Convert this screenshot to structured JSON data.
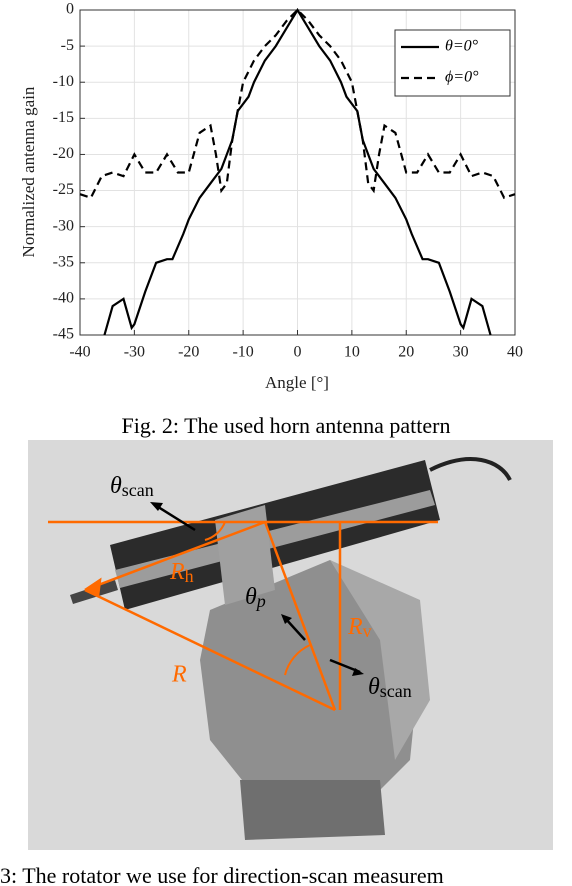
{
  "chart_data": {
    "type": "line",
    "xlabel": "Angle [°]",
    "ylabel": "Normalized antenna gain",
    "xlim": [
      -40,
      40
    ],
    "xticks": [
      -40,
      -30,
      -20,
      -10,
      0,
      10,
      20,
      30,
      40
    ],
    "ylim": [
      -45,
      0
    ],
    "yticks": [
      -45,
      -40,
      -35,
      -30,
      -25,
      -20,
      -15,
      -10,
      -5,
      0
    ],
    "grid": true,
    "legend": "upper right",
    "series": [
      {
        "name": "θ=0°",
        "color": "#000000",
        "line_style": "solid",
        "x": [
          -35.5,
          -34,
          -32,
          -30.5,
          -30,
          -28,
          -26,
          -24,
          -23,
          -21,
          -20,
          -18,
          -16,
          -14,
          -12,
          -11,
          -9,
          -8,
          -6,
          -4,
          -2,
          0,
          2,
          4,
          6,
          8,
          9,
          11,
          12,
          14,
          16,
          18,
          20,
          21,
          23,
          24,
          26,
          28,
          30,
          30.5,
          32,
          34,
          35.5
        ],
        "values": [
          -45,
          -41,
          -40,
          -44,
          -43.5,
          -39,
          -35,
          -34.5,
          -34.5,
          -31,
          -29,
          -26,
          -24,
          -22,
          -18,
          -14,
          -12,
          -10,
          -7,
          -5,
          -2.5,
          0,
          -2.5,
          -5,
          -7,
          -10,
          -12,
          -14,
          -18,
          -22,
          -24,
          -26,
          -29,
          -31,
          -34.5,
          -34.5,
          -35,
          -39,
          -43.5,
          -44,
          -40,
          -41,
          -45
        ]
      },
      {
        "name": "ϕ=0°",
        "color": "#000000",
        "line_style": "dashed",
        "x": [
          -40,
          -38,
          -36,
          -34,
          -32,
          -30,
          -28,
          -26,
          -24,
          -22,
          -20,
          -18,
          -16,
          -15,
          -14,
          -13,
          -12,
          -11,
          -10,
          -8,
          -6,
          -4,
          -2,
          0,
          2,
          4,
          6,
          8,
          10,
          11,
          12,
          13,
          14,
          15,
          16,
          18,
          20,
          22,
          24,
          26,
          28,
          30,
          32,
          34,
          36,
          38,
          40
        ],
        "values": [
          -25.5,
          -26,
          -23,
          -22.5,
          -23,
          -20,
          -22.5,
          -22.5,
          -20,
          -22.5,
          -22.5,
          -17,
          -16,
          -20,
          -25,
          -24,
          -18,
          -14,
          -10,
          -7,
          -5,
          -3.5,
          -1.5,
          0,
          -1.5,
          -3.5,
          -5,
          -7,
          -10,
          -14,
          -18,
          -24,
          -25,
          -20,
          -16,
          -17,
          -22.5,
          -22.5,
          -20,
          -22.5,
          -22.5,
          -20,
          -23,
          -22.5,
          -23,
          -26,
          -25.5
        ]
      }
    ]
  },
  "captions": {
    "fig2": "Fig. 2: The used horn antenna pattern",
    "fig3": "3: The rotator we use for direction-scan measurem"
  },
  "photo": {
    "labels": {
      "theta_scan_top": {
        "symbol": "θ",
        "sub": "scan"
      },
      "r_h": {
        "symbol": "R",
        "sub": "h"
      },
      "theta_p": {
        "symbol": "θ",
        "sub": "p"
      },
      "r_v": {
        "symbol": "R",
        "sub": "v"
      },
      "r": {
        "symbol": "R"
      },
      "theta_scan_bottom": {
        "symbol": "θ",
        "sub": "scan"
      }
    }
  }
}
